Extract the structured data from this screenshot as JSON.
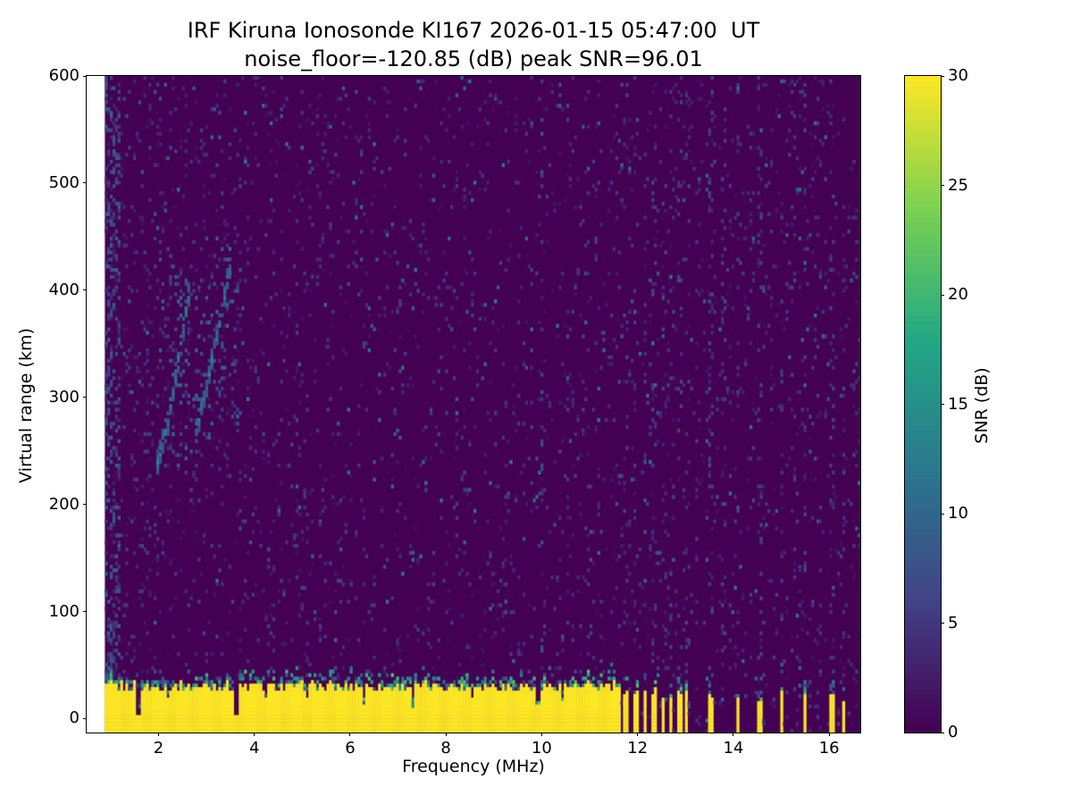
{
  "chart_data": {
    "type": "heatmap",
    "title": "IRF Kiruna Ionosonde KI167 2026-01-15 05:47:00  UT",
    "subtitle": "noise_floor=-120.85 (dB) peak SNR=96.01",
    "station": "IRF Kiruna Ionosonde KI167",
    "timestamp_ut": "2026-01-15 05:47:00",
    "noise_floor_db": -120.85,
    "peak_snr_db": 96.01,
    "xlabel": "Frequency (MHz)",
    "ylabel": "Virtual range (km)",
    "xlim": [
      0.5,
      16.65
    ],
    "ylim": [
      -13,
      600
    ],
    "xticks": [
      2,
      4,
      6,
      8,
      10,
      12,
      14,
      16
    ],
    "yticks": [
      0,
      100,
      200,
      300,
      400,
      500,
      600
    ],
    "grid": false,
    "colormap": "viridis",
    "colorbar": {
      "label": "SNR (dB)",
      "min": 0,
      "max": 30,
      "ticks": [
        0,
        5,
        10,
        15,
        20,
        25,
        30
      ],
      "position": "right"
    },
    "features": {
      "data_fmin": 0.88,
      "background": {
        "speckle_p": 0.045,
        "speckle_vmax": 5,
        "bright_p": 0.006,
        "bright_v": [
          6,
          13
        ]
      },
      "left_noise_column": {
        "f_max": 1.18,
        "p": 0.32,
        "v": [
          2,
          10
        ]
      },
      "echo_cloud": {
        "f": [
          1.95,
          3.65
        ],
        "r": [
          235,
          435
        ],
        "p": 0.07,
        "v": [
          4,
          11
        ]
      },
      "traces": [
        {
          "name": "ionospheric-echo-trace-1",
          "points": [
            [
              1.98,
              238
            ],
            [
              2.18,
              276
            ],
            [
              2.38,
              326
            ],
            [
              2.53,
              368
            ],
            [
              2.66,
              406
            ]
          ],
          "half_width_km": 11,
          "p": 0.7,
          "v": [
            7,
            17
          ]
        },
        {
          "name": "ionospheric-echo-trace-2",
          "points": [
            [
              2.78,
              268
            ],
            [
              2.98,
              306
            ],
            [
              3.18,
              348
            ],
            [
              3.36,
              392
            ],
            [
              3.52,
              428
            ]
          ],
          "half_width_km": 11,
          "p": 0.65,
          "v": [
            7,
            16
          ]
        }
      ],
      "rfi_stripes": [
        {
          "f": 10.0,
          "w": 0.04,
          "p": 0.1,
          "v": [
            2,
            9
          ]
        },
        {
          "f": 11.75,
          "w": 0.04,
          "p": 0.06,
          "v": [
            2,
            7
          ]
        },
        {
          "f": 11.95,
          "w": 0.04,
          "p": 0.06,
          "v": [
            2,
            7
          ]
        },
        {
          "f": 12.15,
          "w": 0.04,
          "p": 0.06,
          "v": [
            2,
            7
          ]
        },
        {
          "f": 12.35,
          "w": 0.04,
          "p": 0.06,
          "v": [
            2,
            7
          ]
        },
        {
          "f": 12.55,
          "w": 0.04,
          "p": 0.06,
          "v": [
            2,
            7
          ]
        },
        {
          "f": 12.72,
          "w": 0.04,
          "p": 0.06,
          "v": [
            2,
            7
          ]
        },
        {
          "f": 12.88,
          "w": 0.04,
          "p": 0.06,
          "v": [
            2,
            7
          ]
        },
        {
          "f": 13.04,
          "w": 0.04,
          "p": 0.06,
          "v": [
            2,
            7
          ]
        },
        {
          "f": 13.25,
          "w": 0.04,
          "p": 0.05,
          "v": [
            2,
            6
          ]
        },
        {
          "f": 13.55,
          "w": 0.05,
          "p": 0.16,
          "v": [
            2,
            8
          ]
        },
        {
          "f": 13.8,
          "w": 0.04,
          "p": 0.1,
          "v": [
            2,
            7
          ]
        },
        {
          "f": 14.1,
          "w": 0.04,
          "p": 0.09,
          "v": [
            2,
            7
          ]
        },
        {
          "f": 14.35,
          "w": 0.04,
          "p": 0.06,
          "v": [
            2,
            6
          ]
        },
        {
          "f": 14.55,
          "w": 0.04,
          "p": 0.09,
          "v": [
            2,
            7
          ]
        },
        {
          "f": 14.8,
          "w": 0.04,
          "p": 0.05,
          "v": [
            2,
            6
          ]
        },
        {
          "f": 15.0,
          "w": 0.04,
          "p": 0.09,
          "v": [
            2,
            7
          ]
        },
        {
          "f": 15.25,
          "w": 0.04,
          "p": 0.05,
          "v": [
            2,
            6
          ]
        },
        {
          "f": 15.5,
          "w": 0.04,
          "p": 0.09,
          "v": [
            2,
            7
          ]
        },
        {
          "f": 15.8,
          "w": 0.04,
          "p": 0.05,
          "v": [
            2,
            6
          ]
        },
        {
          "f": 16.05,
          "w": 0.04,
          "p": 0.08,
          "v": [
            2,
            7
          ]
        },
        {
          "f": 16.3,
          "w": 0.04,
          "p": 0.06,
          "v": [
            2,
            6
          ]
        }
      ],
      "bottom_band": {
        "f_end_continuous": 11.62,
        "top_km": 30,
        "top_jitter_km": 5,
        "fringe_km": 15,
        "notches": [
          {
            "f": 1.58,
            "w": 0.05,
            "top": 3
          },
          {
            "f": 3.63,
            "w": 0.05,
            "top": 4
          },
          {
            "f": 6.3,
            "w": 0.04,
            "top": 12
          },
          {
            "f": 7.32,
            "w": 0.04,
            "top": 10
          },
          {
            "f": 9.93,
            "w": 0.04,
            "top": 14
          },
          {
            "f": 2.2,
            "w": 0.03,
            "top": 18
          },
          {
            "f": 4.25,
            "w": 0.03,
            "top": 18
          },
          {
            "f": 5.1,
            "w": 0.03,
            "top": 19
          },
          {
            "f": 8.55,
            "w": 0.03,
            "top": 18
          },
          {
            "f": 10.45,
            "w": 0.03,
            "top": 17
          }
        ],
        "bars": [
          {
            "f": 11.75,
            "w": 0.045,
            "top": 26
          },
          {
            "f": 11.95,
            "w": 0.045,
            "top": 25
          },
          {
            "f": 12.15,
            "w": 0.045,
            "top": 25
          },
          {
            "f": 12.35,
            "w": 0.04,
            "top": 24
          },
          {
            "f": 12.53,
            "w": 0.04,
            "top": 24
          },
          {
            "f": 12.7,
            "w": 0.04,
            "top": 23
          },
          {
            "f": 12.87,
            "w": 0.04,
            "top": 23
          },
          {
            "f": 13.03,
            "w": 0.035,
            "top": 22
          },
          {
            "f": 13.55,
            "w": 0.05,
            "top": 24
          },
          {
            "f": 14.1,
            "w": 0.045,
            "top": 23
          },
          {
            "f": 14.55,
            "w": 0.04,
            "top": 20
          },
          {
            "f": 15.0,
            "w": 0.045,
            "top": 22
          },
          {
            "f": 15.5,
            "w": 0.045,
            "top": 22
          },
          {
            "f": 16.05,
            "w": 0.04,
            "top": 20
          },
          {
            "f": 16.3,
            "w": 0.03,
            "top": 16
          }
        ]
      }
    }
  },
  "colors": {
    "background": "#ffffff",
    "text": "#000000",
    "viridis_min": "#440154",
    "viridis_max": "#fde725"
  }
}
